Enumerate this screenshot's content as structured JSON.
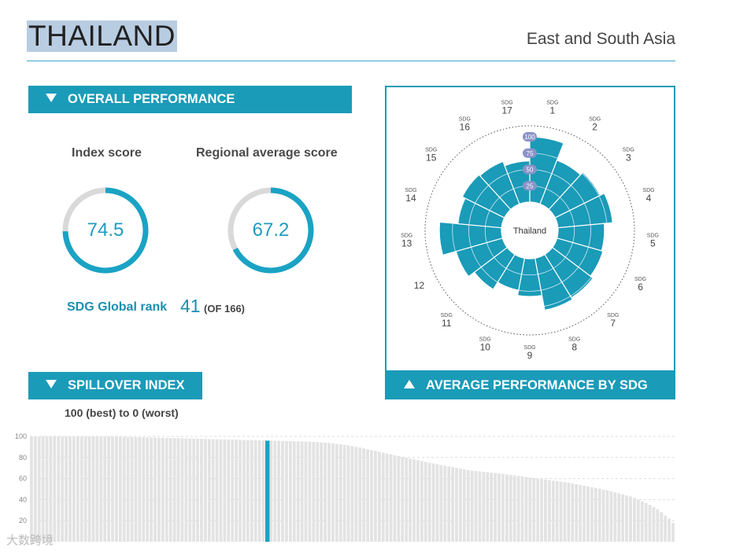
{
  "header": {
    "country": "THAILAND",
    "region": "East and South Asia"
  },
  "overall": {
    "title": "OVERALL PERFORMANCE",
    "index_label": "Index score",
    "index_value": "74.5",
    "index_fraction": 0.745,
    "regional_label": "Regional average score",
    "regional_value": "67.2",
    "regional_fraction": 0.672,
    "rank_label": "SDG Global rank",
    "rank_value": "41",
    "rank_of": "(OF 166)"
  },
  "spillover": {
    "title": "SPILLOVER INDEX",
    "note": "100 (best) to 0 (worst)"
  },
  "sdg_panel": {
    "title": "AVERAGE PERFORMANCE BY SDG"
  },
  "colors": {
    "accent": "#1a9bb8",
    "bar_gray": "#e3e3e3",
    "highlight": "#1aa3c4"
  },
  "watermark": "大数跨境",
  "chart_data": [
    {
      "type": "polar-bar",
      "center_label": "Thailand",
      "ring_labels": [
        "25",
        "50",
        "75",
        "100"
      ],
      "rlim": [
        0,
        100
      ],
      "categories": [
        "1",
        "2",
        "3",
        "4",
        "5",
        "6",
        "7",
        "8",
        "9",
        "10",
        "11",
        "12",
        "13",
        "14",
        "15",
        "16",
        "17"
      ],
      "category_prefix": "SDG",
      "values": [
        100,
        72,
        77,
        84,
        71,
        73,
        78,
        81,
        58,
        50,
        63,
        74,
        95,
        67,
        72,
        70,
        63
      ]
    },
    {
      "type": "bar",
      "ylim": [
        0,
        100
      ],
      "yticks": [
        20,
        40,
        60,
        80,
        100
      ],
      "highlight_value": 96,
      "values": [
        100,
        100,
        100,
        100,
        100,
        100,
        100,
        100,
        100,
        100,
        100,
        100,
        100,
        100,
        100,
        100,
        100,
        100,
        100,
        100,
        99.9,
        99.8,
        99.8,
        99.7,
        99.6,
        99.5,
        99.4,
        99.3,
        99.2,
        99.1,
        99,
        99,
        98.9,
        98.8,
        98.7,
        98.6,
        98.5,
        98.4,
        98.3,
        98.2,
        98.1,
        98,
        97.9,
        97.8,
        97.7,
        97.6,
        97.5,
        97.4,
        97.3,
        97.2,
        97.1,
        97,
        96.9,
        96.8,
        96.7,
        96.6,
        96.5,
        96.4,
        96.3,
        96.2,
        96.1,
        96,
        96,
        95.9,
        95.8,
        95.7,
        95.6,
        95.5,
        95.4,
        95.3,
        95.2,
        95.1,
        95,
        94.8,
        94.6,
        94.4,
        94.1,
        93.8,
        93.4,
        93,
        92.5,
        92,
        91.5,
        90.8,
        90.1,
        89.4,
        88.6,
        87.8,
        87,
        86.2,
        85.4,
        84.6,
        83.8,
        83,
        82.2,
        81.4,
        80.6,
        79.8,
        79,
        78.2,
        77.4,
        76.6,
        75.8,
        75,
        74.3,
        73.6,
        72.9,
        72.2,
        71.5,
        70.8,
        70.1,
        69.4,
        68.7,
        68,
        67.6,
        67.2,
        66.8,
        66.4,
        66,
        65.6,
        65.2,
        64.8,
        64.4,
        64,
        63.5,
        63,
        62.5,
        62,
        61.5,
        61,
        60.5,
        60,
        59.5,
        59,
        58.5,
        58,
        57.5,
        57,
        56.5,
        56,
        55.3,
        54.6,
        53.9,
        53.2,
        52.5,
        51.8,
        51.1,
        50.4,
        49.6,
        48.8,
        48,
        47,
        46,
        45,
        44,
        43,
        41.5,
        40,
        38.5,
        37,
        35,
        33,
        31,
        28,
        25,
        22,
        18
      ]
    }
  ]
}
